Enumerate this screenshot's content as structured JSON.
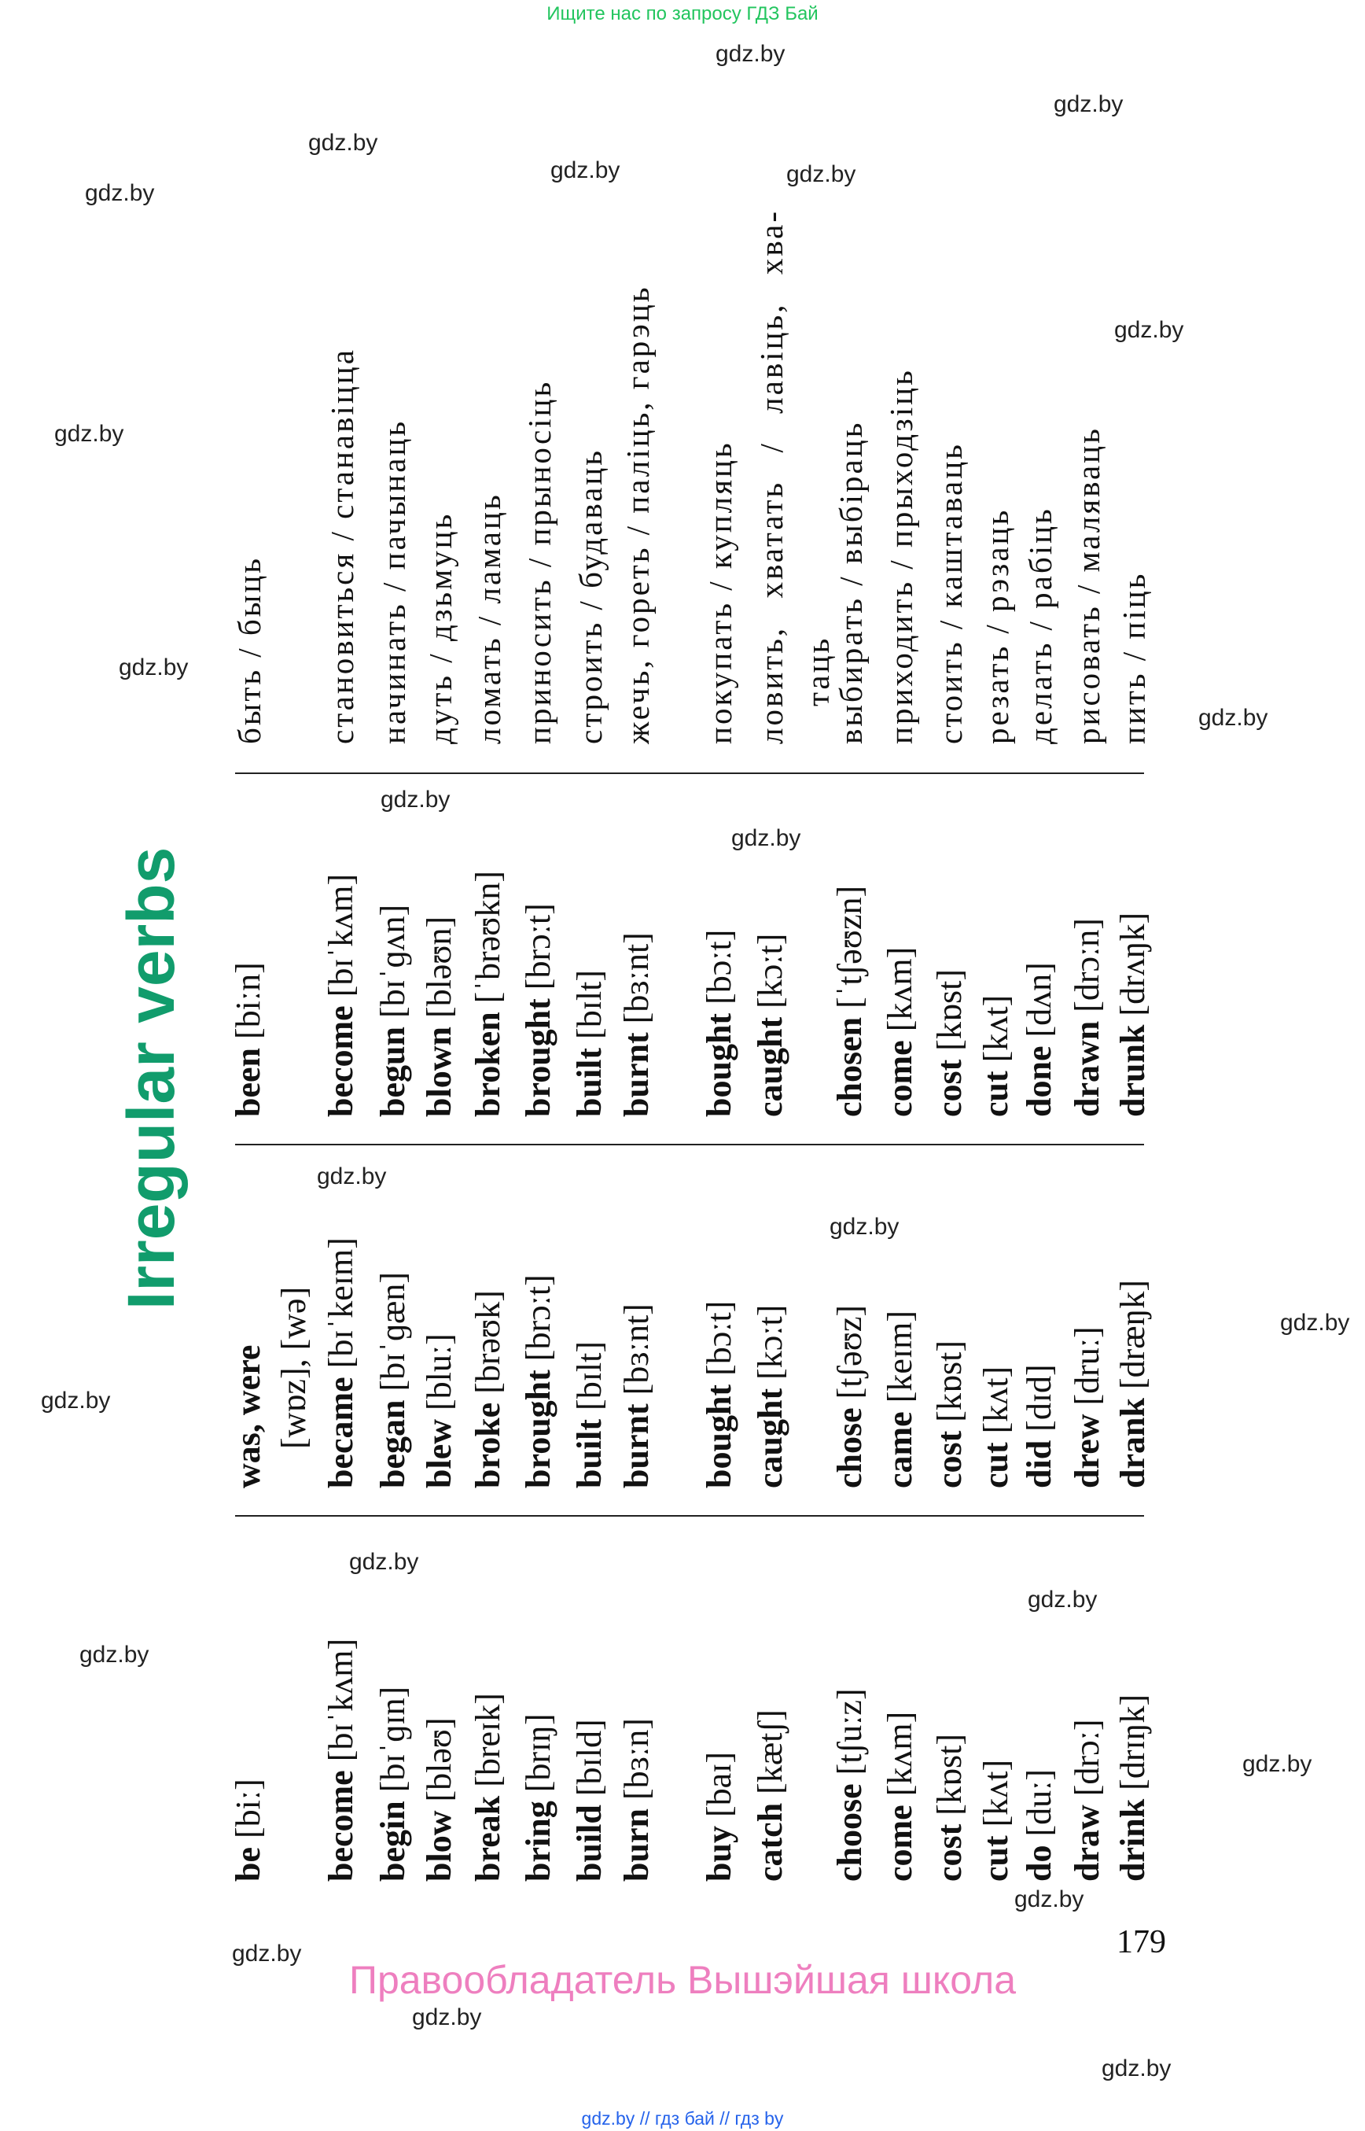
{
  "header": {
    "search_note": "Ищите нас по запросу ГДЗ Бай"
  },
  "title": "Irregular verbs",
  "rows": [
    {
      "base": "be",
      "base_ipa": "[biː]",
      "past": "was, were",
      "past_ipa": "[wɒz], [wə]",
      "participle": "been",
      "participle_ipa": "[biːn]",
      "translation": "быть / быць"
    },
    {
      "base": "become",
      "base_ipa": "[bɪˈkʌm]",
      "past": "became",
      "past_ipa": "[bɪˈkeɪm]",
      "participle": "become",
      "participle_ipa": "[bɪˈkʌm]",
      "translation": "становиться / станавіцца"
    },
    {
      "base": "begin",
      "base_ipa": "[bɪˈɡɪn]",
      "past": "began",
      "past_ipa": "[bɪˈɡæn]",
      "participle": "begun",
      "participle_ipa": "[bɪˈɡʌn]",
      "translation": "начинать / пачынаць"
    },
    {
      "base": "blow",
      "base_ipa": "[bləʊ]",
      "past": "blew",
      "past_ipa": "[bluː]",
      "participle": "blown",
      "participle_ipa": "[bləʊn]",
      "translation": "дуть / дзьмуць"
    },
    {
      "base": "break",
      "base_ipa": "[breɪk]",
      "past": "broke",
      "past_ipa": "[brəʊk]",
      "participle": "broken",
      "participle_ipa": "[ˈbrəʊkn]",
      "translation": "ломать / ламаць"
    },
    {
      "base": "bring",
      "base_ipa": "[brɪŋ]",
      "past": "brought",
      "past_ipa": "[brɔːt]",
      "participle": "brought",
      "participle_ipa": "[brɔːt]",
      "translation": "приносить / прыносіць"
    },
    {
      "base": "build",
      "base_ipa": "[bɪld]",
      "past": "built",
      "past_ipa": "[bɪlt]",
      "participle": "built",
      "participle_ipa": "[bɪlt]",
      "translation": "строить / будаваць"
    },
    {
      "base": "burn",
      "base_ipa": "[bɜːn]",
      "past": "burnt",
      "past_ipa": "[bɜːnt]",
      "participle": "burnt",
      "participle_ipa": "[bɜːnt]",
      "translation": "жечь, гореть / паліць, гарэць"
    },
    {
      "base": "buy",
      "base_ipa": "[baɪ]",
      "past": "bought",
      "past_ipa": "[bɔːt]",
      "participle": "bought",
      "participle_ipa": "[bɔːt]",
      "translation": "покупать / купляць"
    },
    {
      "base": "catch",
      "base_ipa": "[kætʃ]",
      "past": "caught",
      "past_ipa": "[kɔːt]",
      "participle": "caught",
      "participle_ipa": "[kɔːt]",
      "translation": "ловить, хватать / лавіць, хва-таць"
    },
    {
      "base": "choose",
      "base_ipa": "[tʃuːz]",
      "past": "chose",
      "past_ipa": "[tʃəʊz]",
      "participle": "chosen",
      "participle_ipa": "[ˈtʃəʊzn]",
      "translation": "выбирать / выбіраць"
    },
    {
      "base": "come",
      "base_ipa": "[kʌm]",
      "past": "came",
      "past_ipa": "[keɪm]",
      "participle": "come",
      "participle_ipa": "[kʌm]",
      "translation": "приходить / прыходзіць"
    },
    {
      "base": "cost",
      "base_ipa": "[kɒst]",
      "past": "cost",
      "past_ipa": "[kɒst]",
      "participle": "cost",
      "participle_ipa": "[kɒst]",
      "translation": "стоить / каштаваць"
    },
    {
      "base": "cut",
      "base_ipa": "[kʌt]",
      "past": "cut",
      "past_ipa": "[kʌt]",
      "participle": "cut",
      "participle_ipa": "[kʌt]",
      "translation": "резать / рэзаць"
    },
    {
      "base": "do",
      "base_ipa": "[duː]",
      "past": "did",
      "past_ipa": "[dɪd]",
      "participle": "done",
      "participle_ipa": "[dʌn]",
      "translation": "делать / рабіць"
    },
    {
      "base": "draw",
      "base_ipa": "[drɔː]",
      "past": "drew",
      "past_ipa": "[druː]",
      "participle": "drawn",
      "participle_ipa": "[drɔːn]",
      "translation": "рисовать / маляваць"
    },
    {
      "base": "drink",
      "base_ipa": "[drɪŋk]",
      "past": "drank",
      "past_ipa": "[dræŋk]",
      "participle": "drunk",
      "participle_ipa": "[drʌŋk]",
      "translation": "пить / піць"
    }
  ],
  "page_number": "179",
  "footer": {
    "owner": "Правообладатель Вышэйшая школа",
    "links": "gdz.by  //  гдз бай  //  гдз by"
  },
  "watermark": "gdz.by",
  "colors": {
    "title": "#119c6c",
    "owner": "#ee7fbf",
    "search_note": "#22c55e",
    "links": "#2563eb"
  }
}
